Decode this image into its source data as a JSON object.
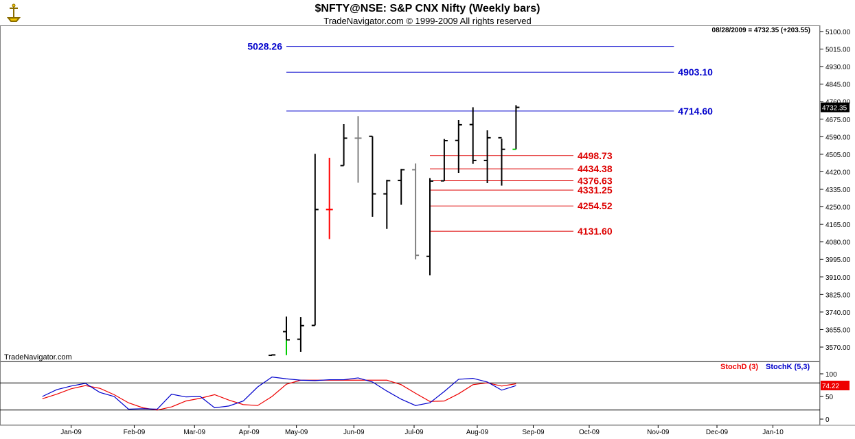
{
  "header": {
    "title": "$NFTY@NSE:  S&P CNX Nifty  (Weekly bars)",
    "subtitle": "TradeNavigator.com © 1999-2009 All rights reserved",
    "last_quote": "08/28/2009 = 4732.35 (+203.55)",
    "watermark": "TradeNavigator.com"
  },
  "colors": {
    "bar_default": "#000000",
    "bar_up_highlight": "#00cc00",
    "bar_red": "#ff0000",
    "bar_gray": "#808080",
    "level_blue": "#0000cc",
    "level_red": "#dd0000",
    "stochD": "#ee0000",
    "stochK": "#0000cc"
  },
  "chart_data": [
    {
      "type": "ohlc",
      "title": "$NFTY@NSE:  S&P CNX Nifty  (Weekly bars)",
      "ylim": [
        3520,
        5125
      ],
      "yticks": [
        5100,
        5015,
        4930,
        4845,
        4760,
        4675,
        4590,
        4505,
        4420,
        4335,
        4250,
        4165,
        4080,
        3995,
        3910,
        3825,
        3740,
        3655,
        3570
      ],
      "ytick_labels": [
        "5100.00",
        "5015.00",
        "4930.00",
        "4845.00",
        "4760.00",
        "4675.00",
        "4590.00",
        "4505.00",
        "4420.00",
        "4335.00",
        "4250.00",
        "4165.00",
        "4080.00",
        "3995.00",
        "3910.00",
        "3825.00",
        "3740.00",
        "3655.00",
        "3570.00"
      ],
      "last_price_label": "4732.35",
      "last_price": 4732.35,
      "months": [
        "Jan-09",
        "Feb-09",
        "Mar-09",
        "Apr-09",
        "May-09",
        "Jun-09",
        "Jul-09",
        "Aug-09",
        "Sep-09",
        "Oct-09",
        "Nov-09",
        "Dec-09",
        "Jan-10"
      ],
      "month_week_index": [
        -15,
        -10.6,
        -6.4,
        -2.6,
        0.7,
        4.7,
        8.9,
        13.3,
        17.2,
        21.1,
        25.9,
        30.0,
        33.9
      ],
      "bars": [
        {
          "wk": -1,
          "o": 3530,
          "h": 3535,
          "l": 3530,
          "c": 3532,
          "color": "default"
        },
        {
          "wk": 0,
          "o": 3645,
          "h": 3718,
          "l": 3531,
          "c": 3605,
          "color": "default",
          "wick": "up_highlight"
        },
        {
          "wk": 1,
          "o": 3608,
          "h": 3716,
          "l": 3547,
          "c": 3674,
          "color": "default"
        },
        {
          "wk": 2,
          "o": 3675,
          "h": 4507,
          "l": 3675,
          "c": 4237,
          "color": "default"
        },
        {
          "wk": 3,
          "o": 4237,
          "h": 4488,
          "l": 4094,
          "c": 4237,
          "color": "red"
        },
        {
          "wk": 4,
          "o": 4450,
          "h": 4651,
          "l": 4450,
          "c": 4583,
          "color": "default"
        },
        {
          "wk": 5,
          "o": 4583,
          "h": 4690,
          "l": 4367,
          "c": 4583,
          "color": "gray"
        },
        {
          "wk": 6,
          "o": 4592,
          "h": 4592,
          "l": 4202,
          "c": 4313,
          "color": "default"
        },
        {
          "wk": 7,
          "o": 4313,
          "h": 4381,
          "l": 4143,
          "c": 4377,
          "color": "default"
        },
        {
          "wk": 8,
          "o": 4378,
          "h": 4434,
          "l": 4260,
          "c": 4430,
          "color": "default"
        },
        {
          "wk": 9,
          "o": 4430,
          "h": 4460,
          "l": 3995,
          "c": 4015,
          "color": "gray"
        },
        {
          "wk": 10,
          "o": 4010,
          "h": 4389,
          "l": 3918,
          "c": 4375,
          "color": "default"
        },
        {
          "wk": 11,
          "o": 4376,
          "h": 4579,
          "l": 4376,
          "c": 4571,
          "color": "default"
        },
        {
          "wk": 12,
          "o": 4572,
          "h": 4671,
          "l": 4415,
          "c": 4648,
          "color": "default"
        },
        {
          "wk": 13,
          "o": 4649,
          "h": 4733,
          "l": 4459,
          "c": 4475,
          "color": "default"
        },
        {
          "wk": 14,
          "o": 4475,
          "h": 4621,
          "l": 4365,
          "c": 4585,
          "color": "default"
        },
        {
          "wk": 15,
          "o": 4585,
          "h": 4580,
          "l": 4353,
          "c": 4529,
          "color": "default"
        },
        {
          "wk": 16,
          "o": 4529,
          "h": 4743,
          "l": 4529,
          "c": 4732.35,
          "color": "default",
          "open_tick": "up_highlight"
        }
      ],
      "levels": [
        {
          "label": "5028.26",
          "value": 5028.26,
          "color": "blue",
          "start_wk": 0,
          "end_wk": 27,
          "label_side": "left"
        },
        {
          "label": "4903.10",
          "value": 4903.1,
          "color": "blue",
          "start_wk": 0,
          "end_wk": 27,
          "label_side": "right"
        },
        {
          "label": "4714.60",
          "value": 4714.6,
          "color": "blue",
          "start_wk": 0,
          "end_wk": 27,
          "label_side": "right"
        },
        {
          "label": "4498.73",
          "value": 4498.73,
          "color": "red",
          "start_wk": 10,
          "end_wk": 20,
          "label_side": "right"
        },
        {
          "label": "4434.38",
          "value": 4434.38,
          "color": "red",
          "start_wk": 10,
          "end_wk": 20,
          "label_side": "right"
        },
        {
          "label": "4376.63",
          "value": 4376.63,
          "color": "red",
          "start_wk": 10,
          "end_wk": 20,
          "label_side": "right"
        },
        {
          "label": "4331.25",
          "value": 4331.25,
          "color": "red",
          "start_wk": 10,
          "end_wk": 20,
          "label_side": "right"
        },
        {
          "label": "4254.52",
          "value": 4254.52,
          "color": "red",
          "start_wk": 10,
          "end_wk": 20,
          "label_side": "right"
        },
        {
          "label": "4131.60",
          "value": 4131.6,
          "color": "red",
          "start_wk": 10,
          "end_wk": 20,
          "label_side": "right"
        }
      ]
    },
    {
      "type": "line",
      "title": "",
      "ylim": [
        -8,
        128
      ],
      "yticks": [
        100,
        50,
        0
      ],
      "ytick_labels": [
        "100",
        "50",
        "0"
      ],
      "reference_lines": [
        80,
        20
      ],
      "last_value_label": "74.22",
      "last_value": 74.22,
      "series": [
        {
          "name": "StochD (3)",
          "color": "stochD",
          "x": [
            -17,
            -16,
            -15,
            -14,
            -13,
            -12,
            -11,
            -10,
            -9,
            -8,
            -7,
            -6,
            -5,
            -4,
            -3,
            -2,
            -1,
            0,
            1,
            2,
            3,
            4,
            5,
            6,
            7,
            8,
            9,
            10,
            11,
            12,
            13,
            14,
            15,
            16
          ],
          "y": [
            45,
            55,
            67,
            74,
            68,
            54,
            36,
            25,
            20,
            27,
            40,
            46,
            54,
            42,
            32,
            30,
            50,
            77,
            86,
            86,
            86,
            86,
            86,
            86,
            86,
            76,
            57,
            39,
            40,
            56,
            76,
            80,
            73,
            78
          ]
        },
        {
          "name": "StochK (5,3)",
          "color": "stochK",
          "x": [
            -17,
            -16,
            -15,
            -14,
            -13,
            -12,
            -11,
            -10,
            -9,
            -8,
            -7,
            -6,
            -5,
            -4,
            -3,
            -2,
            -1,
            0,
            1,
            2,
            3,
            4,
            5,
            6,
            7,
            8,
            9,
            10,
            11,
            12,
            13,
            14,
            15,
            16
          ],
          "y": [
            50,
            65,
            73,
            79,
            59,
            50,
            22,
            23,
            22,
            55,
            49,
            50,
            25,
            29,
            40,
            71,
            93,
            89,
            86,
            85,
            87,
            87,
            91,
            82,
            62,
            44,
            30,
            36,
            61,
            88,
            90,
            82,
            64,
            74
          ]
        }
      ]
    }
  ]
}
